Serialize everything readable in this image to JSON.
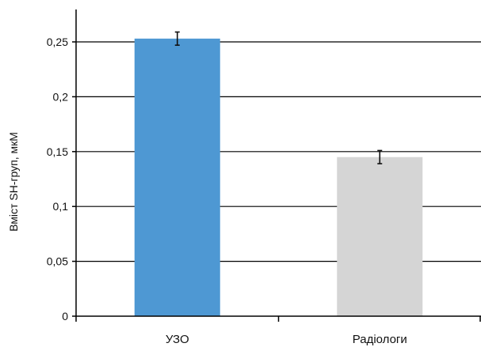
{
  "chart_data": {
    "type": "bar",
    "categories": [
      "УЗО",
      "Радіологи"
    ],
    "values": [
      0.253,
      0.145
    ],
    "errors": [
      0.006,
      0.006
    ],
    "colors": [
      "#4e98d3",
      "#d5d5d5"
    ],
    "ylabel": "Вміст SH-груп, мкМ",
    "ylim": [
      0,
      0.25
    ],
    "yticks": [
      0,
      0.05,
      0.1,
      0.15,
      0.2,
      0.25
    ],
    "ytick_labels": [
      "0",
      "0,05",
      "0,1",
      "0,15",
      "0,2",
      "0,25"
    ],
    "grid": true
  }
}
